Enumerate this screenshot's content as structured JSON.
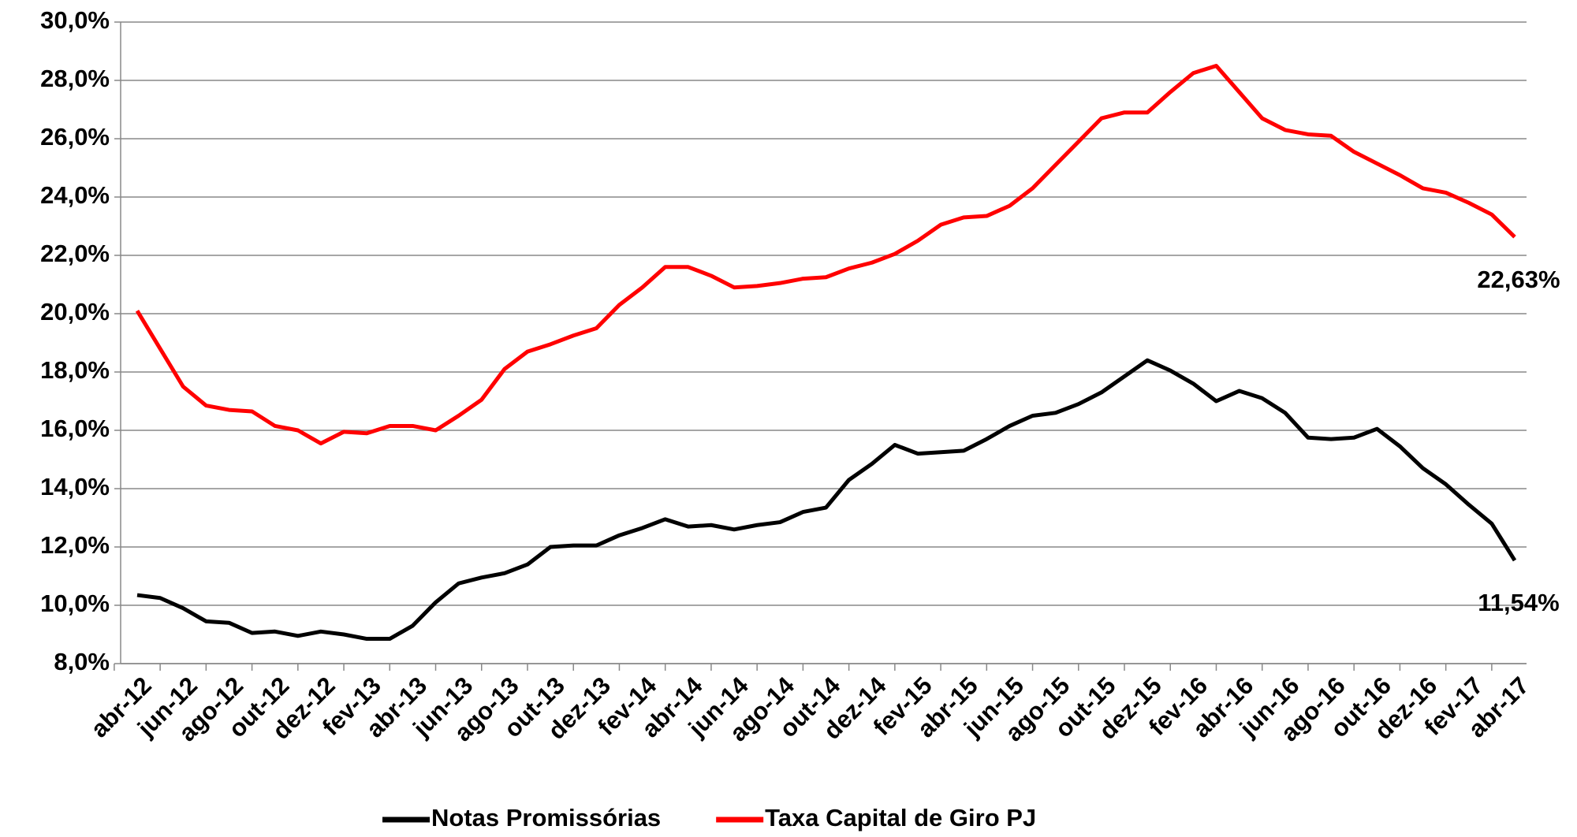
{
  "chart_data": {
    "type": "line",
    "categories": [
      "abr-12",
      null,
      "jun-12",
      null,
      "ago-12",
      null,
      "out-12",
      null,
      "dez-12",
      null,
      "fev-13",
      null,
      "abr-13",
      null,
      "jun-13",
      null,
      "ago-13",
      null,
      "out-13",
      null,
      "dez-13",
      null,
      "fev-14",
      null,
      "abr-14",
      null,
      "jun-14",
      null,
      "ago-14",
      null,
      "out-14",
      null,
      "dez-14",
      null,
      "fev-15",
      null,
      "abr-15",
      null,
      "jun-15",
      null,
      "ago-15",
      null,
      "out-15",
      null,
      "dez-15",
      null,
      "fev-16",
      null,
      "abr-16",
      null,
      "jun-16",
      null,
      "ago-16",
      null,
      "out-16",
      null,
      "dez-16",
      null,
      "fev-17",
      null,
      "abr-17"
    ],
    "series": [
      {
        "name": "Notas Promissórias",
        "color": "#000000",
        "values": [
          10.35,
          10.25,
          9.9,
          9.45,
          9.4,
          9.05,
          9.1,
          8.95,
          9.1,
          9.0,
          8.85,
          8.85,
          9.3,
          10.1,
          10.75,
          10.95,
          11.1,
          11.4,
          12.0,
          12.05,
          12.05,
          12.4,
          12.65,
          12.95,
          12.7,
          12.75,
          12.6,
          12.75,
          12.85,
          13.2,
          13.35,
          14.3,
          14.85,
          15.5,
          15.2,
          15.25,
          15.3,
          15.7,
          16.15,
          16.5,
          16.6,
          16.9,
          17.3,
          17.85,
          18.4,
          18.05,
          17.6,
          17.0,
          17.35,
          17.1,
          16.6,
          15.75,
          15.7,
          15.75,
          16.05,
          15.45,
          14.7,
          14.15,
          13.45,
          12.8,
          11.54
        ],
        "value_labels": [
          null,
          null,
          null,
          null,
          null,
          null,
          null,
          null,
          null,
          null,
          null,
          null,
          null,
          null,
          null,
          null,
          null,
          null,
          null,
          null,
          null,
          null,
          null,
          null,
          null,
          null,
          null,
          null,
          null,
          null,
          null,
          null,
          null,
          null,
          null,
          null,
          null,
          null,
          null,
          null,
          null,
          null,
          null,
          null,
          null,
          null,
          null,
          null,
          null,
          null,
          null,
          null,
          null,
          null,
          null,
          null,
          null,
          null,
          null,
          null,
          "11,54%"
        ],
        "label_color": "#000000"
      },
      {
        "name": "Taxa Capital de Giro PJ",
        "color": "#ff0000",
        "values": [
          20.1,
          18.8,
          17.5,
          16.85,
          16.7,
          16.65,
          16.15,
          16.0,
          15.55,
          15.95,
          15.9,
          16.15,
          16.15,
          16.0,
          16.5,
          17.05,
          18.1,
          18.7,
          18.95,
          19.25,
          19.5,
          20.3,
          20.9,
          21.6,
          21.6,
          21.3,
          20.9,
          20.95,
          21.05,
          21.2,
          21.25,
          21.55,
          21.75,
          22.05,
          22.5,
          23.05,
          23.3,
          23.35,
          23.7,
          24.3,
          25.1,
          25.9,
          26.7,
          26.9,
          26.9,
          27.6,
          28.25,
          28.5,
          27.6,
          26.7,
          26.3,
          26.15,
          26.1,
          25.55,
          25.15,
          24.75,
          24.3,
          24.15,
          23.8,
          23.4,
          22.63
        ],
        "value_labels": [
          null,
          null,
          null,
          null,
          null,
          null,
          null,
          null,
          null,
          null,
          null,
          null,
          null,
          null,
          null,
          null,
          null,
          null,
          null,
          null,
          null,
          null,
          null,
          null,
          null,
          null,
          null,
          null,
          null,
          null,
          null,
          null,
          null,
          null,
          null,
          null,
          null,
          null,
          null,
          null,
          null,
          null,
          null,
          null,
          null,
          null,
          null,
          null,
          null,
          null,
          null,
          null,
          null,
          null,
          null,
          null,
          null,
          null,
          null,
          null,
          "22,63%"
        ],
        "label_color": "#e8103c"
      }
    ],
    "ylim": [
      8,
      30
    ],
    "yticks": [
      {
        "value": 8,
        "label": "8,0%"
      },
      {
        "value": 10,
        "label": "10,0%"
      },
      {
        "value": 12,
        "label": "12,0%"
      },
      {
        "value": 14,
        "label": "14,0%"
      },
      {
        "value": 16,
        "label": "16,0%"
      },
      {
        "value": 18,
        "label": "18,0%"
      },
      {
        "value": 20,
        "label": "20,0%"
      },
      {
        "value": 22,
        "label": "22,0%"
      },
      {
        "value": 24,
        "label": "24,0%"
      },
      {
        "value": 26,
        "label": "26,0%"
      },
      {
        "value": 28,
        "label": "28,0%"
      },
      {
        "value": 30,
        "label": "30,0%"
      }
    ],
    "grid": true,
    "legend": "bottom"
  }
}
